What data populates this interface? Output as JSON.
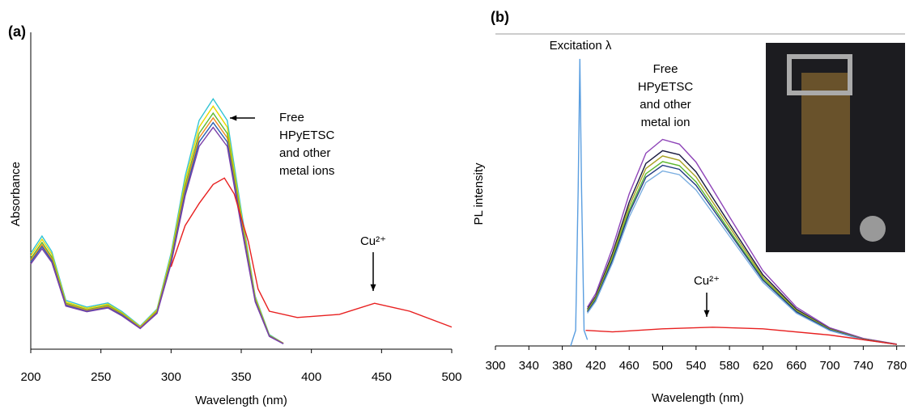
{
  "chart_data": [
    {
      "type": "line",
      "label": "(a)",
      "ylabel": "Absorbance",
      "xlabel": "Wavelength (nm)",
      "xlim": [
        200,
        500
      ],
      "xticks": [
        200,
        250,
        300,
        350,
        400,
        450,
        500
      ],
      "ylim": [
        0,
        1
      ],
      "x": [
        200,
        208,
        215,
        225,
        240,
        255,
        265,
        278,
        290,
        300,
        310,
        320,
        330,
        340,
        350,
        360,
        370,
        380
      ],
      "series": [
        {
          "color": "#33c4d4",
          "values": [
            0.303,
            0.357,
            0.308,
            0.154,
            0.133,
            0.146,
            0.119,
            0.073,
            0.127,
            0.303,
            0.546,
            0.722,
            0.79,
            0.722,
            0.438,
            0.167,
            0.046,
            0.019
          ]
        },
        {
          "color": "#e8d800",
          "values": [
            0.295,
            0.347,
            0.3,
            0.149,
            0.129,
            0.142,
            0.115,
            0.071,
            0.124,
            0.295,
            0.53,
            0.701,
            0.767,
            0.701,
            0.425,
            0.163,
            0.044,
            0.019
          ]
        },
        {
          "color": "#5cb82e",
          "values": [
            0.286,
            0.337,
            0.291,
            0.145,
            0.125,
            0.138,
            0.112,
            0.069,
            0.12,
            0.286,
            0.515,
            0.681,
            0.745,
            0.681,
            0.413,
            0.158,
            0.043,
            0.018
          ]
        },
        {
          "color": "#f08a20",
          "values": [
            0.28,
            0.33,
            0.285,
            0.142,
            0.123,
            0.135,
            0.11,
            0.068,
            0.118,
            0.28,
            0.505,
            0.667,
            0.73,
            0.667,
            0.405,
            0.155,
            0.042,
            0.018
          ]
        },
        {
          "color": "#2a5fb0",
          "values": [
            0.275,
            0.324,
            0.279,
            0.139,
            0.12,
            0.132,
            0.108,
            0.066,
            0.115,
            0.275,
            0.494,
            0.654,
            0.715,
            0.654,
            0.396,
            0.152,
            0.041,
            0.017
          ]
        },
        {
          "color": "#7a3fa8",
          "values": [
            0.269,
            0.317,
            0.274,
            0.136,
            0.118,
            0.13,
            0.105,
            0.065,
            0.113,
            0.269,
            0.484,
            0.64,
            0.7,
            0.64,
            0.388,
            0.149,
            0.04,
            0.017
          ]
        },
        {
          "color": "#e82020",
          "x": [
            300,
            310,
            320,
            330,
            338,
            345,
            355,
            362,
            370,
            390,
            420,
            445,
            470,
            500
          ],
          "values": [
            0.26,
            0.39,
            0.46,
            0.52,
            0.54,
            0.49,
            0.34,
            0.19,
            0.12,
            0.1,
            0.11,
            0.145,
            0.12,
            0.07
          ]
        }
      ],
      "annotations": [
        [
          "Free",
          "HPyETSC",
          "and other",
          "metal ions"
        ],
        [
          "Cu²⁺"
        ]
      ]
    },
    {
      "type": "line",
      "label": "(b)",
      "ylabel": "PL intensity",
      "xlabel": "Wavelength (nm)",
      "xlim": [
        300,
        790
      ],
      "xticks": [
        300,
        340,
        380,
        420,
        460,
        500,
        540,
        580,
        620,
        660,
        700,
        740,
        780
      ],
      "ylim": [
        0,
        1
      ],
      "x": [
        410,
        420,
        440,
        460,
        480,
        500,
        520,
        540,
        560,
        580,
        620,
        660,
        700,
        740,
        780
      ],
      "series": [
        {
          "color": "#8e44b8",
          "values": [
            0.124,
            0.168,
            0.314,
            0.487,
            0.618,
            0.662,
            0.647,
            0.589,
            0.502,
            0.414,
            0.241,
            0.124,
            0.058,
            0.024,
            0.006
          ]
        },
        {
          "color": "#1a1a40",
          "values": [
            0.118,
            0.159,
            0.297,
            0.461,
            0.585,
            0.626,
            0.613,
            0.558,
            0.475,
            0.392,
            0.228,
            0.118,
            0.055,
            0.022,
            0.005
          ]
        },
        {
          "color": "#a8a020",
          "values": [
            0.114,
            0.155,
            0.288,
            0.448,
            0.569,
            0.609,
            0.595,
            0.542,
            0.461,
            0.381,
            0.221,
            0.114,
            0.054,
            0.022,
            0.005
          ]
        },
        {
          "color": "#5cb82e",
          "values": [
            0.111,
            0.15,
            0.28,
            0.435,
            0.552,
            0.591,
            0.578,
            0.526,
            0.448,
            0.37,
            0.215,
            0.111,
            0.052,
            0.021,
            0.005
          ]
        },
        {
          "color": "#203a80",
          "values": [
            0.109,
            0.147,
            0.274,
            0.426,
            0.541,
            0.579,
            0.566,
            0.515,
            0.439,
            0.363,
            0.211,
            0.109,
            0.051,
            0.021,
            0.005
          ]
        },
        {
          "color": "#7aaee0",
          "values": [
            0.105,
            0.143,
            0.266,
            0.413,
            0.524,
            0.561,
            0.549,
            0.5,
            0.426,
            0.352,
            0.204,
            0.105,
            0.049,
            0.02,
            0.005
          ]
        },
        {
          "color": "#5a9ee0",
          "x": [
            390,
            396,
            399,
            401,
            403,
            406,
            410
          ],
          "values": [
            0,
            0.05,
            0.5,
            0.92,
            0.5,
            0.05,
            0.02
          ]
        },
        {
          "color": "#e82020",
          "x": [
            408,
            440,
            500,
            560,
            620,
            700,
            780
          ],
          "values": [
            0.05,
            0.045,
            0.055,
            0.06,
            0.055,
            0.035,
            0.005
          ]
        }
      ],
      "annotations": [
        [
          "Excitation λ"
        ],
        [
          "Free",
          "HPyETSC",
          "and other",
          "metal ion"
        ],
        [
          "Cu²⁺"
        ]
      ]
    }
  ]
}
